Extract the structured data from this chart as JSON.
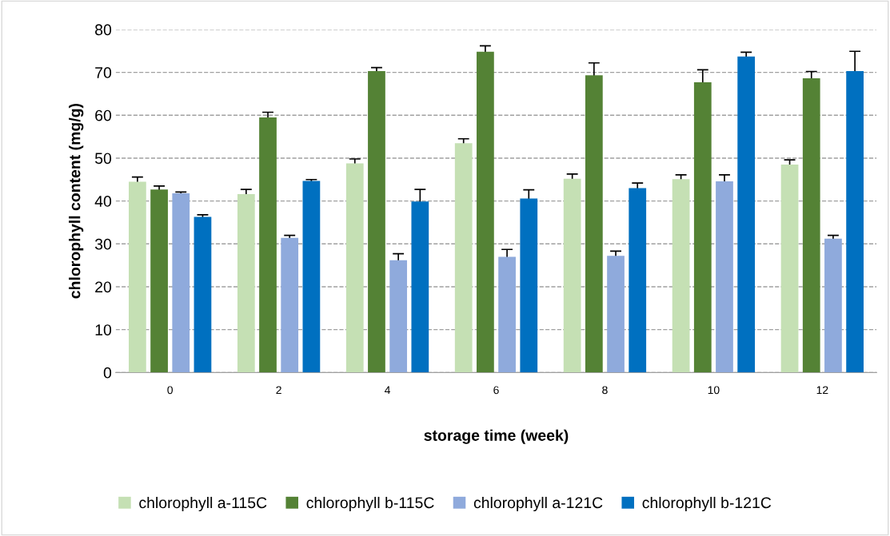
{
  "chart_data": {
    "type": "bar",
    "xlabel": "storage time (week)",
    "ylabel": "chlorophyll content (mg/g)",
    "categories": [
      "0",
      "2",
      "4",
      "6",
      "8",
      "10",
      "12"
    ],
    "series": [
      {
        "name": "chlorophyll a-115C",
        "color": "#c5e0b4",
        "values": [
          44.5,
          41.6,
          48.8,
          53.5,
          45.2,
          45.1,
          48.5
        ],
        "errors": [
          1.1,
          1.1,
          1.0,
          1.0,
          1.1,
          1.0,
          1.1
        ]
      },
      {
        "name": "chlorophyll b-115C",
        "color": "#548235",
        "values": [
          42.7,
          59.5,
          70.3,
          74.8,
          69.3,
          67.7,
          68.6
        ],
        "errors": [
          0.8,
          1.2,
          0.8,
          1.4,
          2.9,
          2.9,
          1.6
        ]
      },
      {
        "name": "chlorophyll a-121C",
        "color": "#8faadc",
        "values": [
          41.8,
          31.4,
          26.2,
          27.0,
          27.2,
          44.6,
          31.2
        ],
        "errors": [
          0.3,
          0.6,
          1.5,
          1.7,
          1.1,
          1.5,
          0.8
        ]
      },
      {
        "name": "chlorophyll b-121C",
        "color": "#0070c0",
        "values": [
          36.3,
          44.7,
          39.9,
          40.6,
          43.0,
          73.7,
          70.3
        ],
        "errors": [
          0.5,
          0.3,
          2.8,
          2.0,
          1.2,
          1.0,
          4.6
        ]
      }
    ],
    "ylim": [
      0,
      80
    ],
    "yticks": [
      0,
      10,
      20,
      30,
      40,
      50,
      60,
      70,
      80
    ],
    "grid": "y",
    "legend": "bottom"
  }
}
